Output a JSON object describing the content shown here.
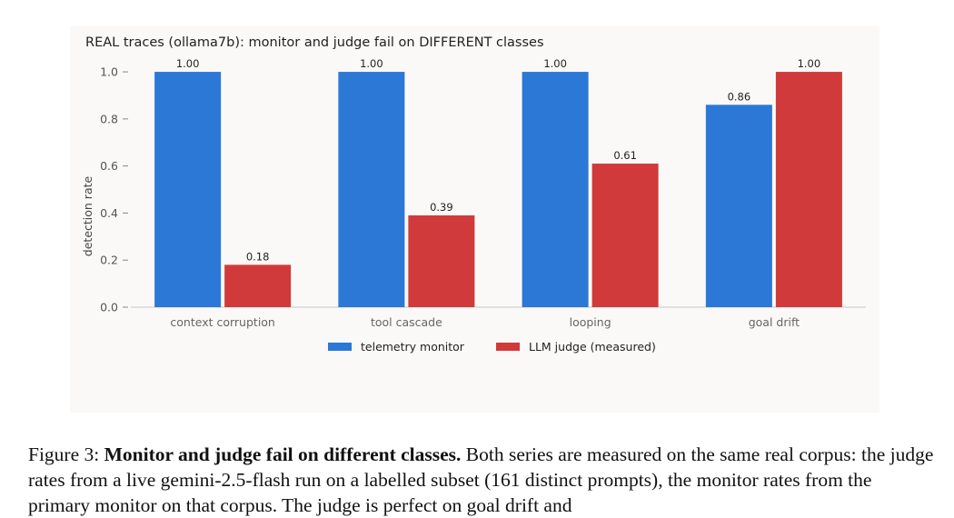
{
  "chart_data": {
    "type": "bar",
    "title": "REAL traces (ollama7b): monitor and judge fail on DIFFERENT classes",
    "xlabel": "",
    "ylabel": "detection rate",
    "ylim": [
      0,
      1.12
    ],
    "yticks": [
      0.0,
      0.2,
      0.4,
      0.6,
      0.8,
      1.0
    ],
    "ytick_labels": [
      "0.0",
      "0.2",
      "0.4",
      "0.6",
      "0.8",
      "1.0"
    ],
    "grid": false,
    "legend_position": "bottom-center",
    "categories": [
      "context corruption",
      "tool cascade",
      "looping",
      "goal drift"
    ],
    "series": [
      {
        "name": "telemetry monitor",
        "color": "#2b78d6",
        "values": [
          1.0,
          1.0,
          1.0,
          0.86
        ],
        "labels": [
          "1.00",
          "1.00",
          "1.00",
          "0.86"
        ]
      },
      {
        "name": "LLM judge (measured)",
        "color": "#d13a3a",
        "values": [
          0.18,
          0.39,
          0.61,
          1.0
        ],
        "labels": [
          "0.18",
          "0.39",
          "0.61",
          "1.00"
        ]
      }
    ]
  },
  "caption": {
    "prefix": "Figure 3: ",
    "bold": "Monitor and judge fail on different classes.",
    "text": " Both series are measured on the same real corpus: the judge rates from a live gemini-2.5-flash run on a labelled subset (161 distinct prompts), the monitor rates from the primary monitor on that corpus. The judge is perfect on goal drift and"
  }
}
